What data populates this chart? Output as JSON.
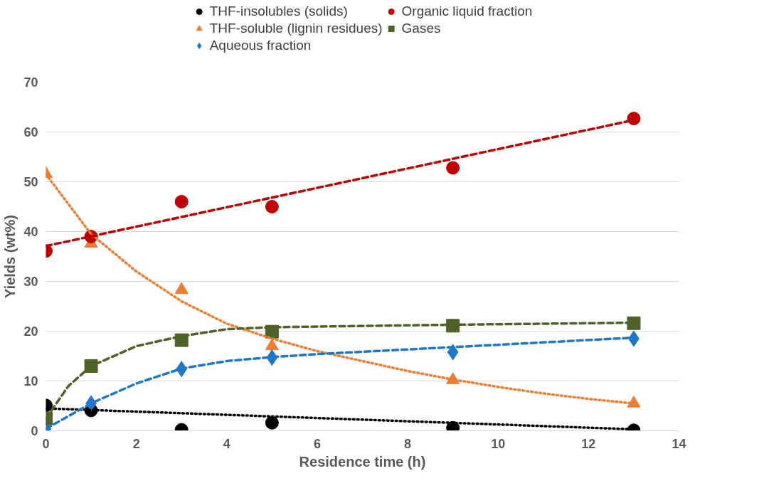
{
  "chart_data": {
    "type": "scatter",
    "xlabel": "Residence time (h)",
    "ylabel": "Yields (wt%)",
    "xlim": [
      0,
      14
    ],
    "ylim": [
      0,
      70
    ],
    "xticks": [
      0,
      2,
      4,
      6,
      8,
      10,
      12,
      14
    ],
    "yticks": [
      0,
      10,
      20,
      30,
      40,
      50,
      60,
      70
    ],
    "grid": "y",
    "legend": "top",
    "x": [
      0,
      1,
      3,
      5,
      9,
      13
    ],
    "series": [
      {
        "name": "THF-insolubles (solids)",
        "color": "#000000",
        "marker": "circle",
        "values": [
          5.1,
          4.1,
          0.2,
          1.6,
          0.6,
          0.1
        ]
      },
      {
        "name": "THF-soluble (lignin residues)",
        "color": "#ed7d31",
        "marker": "triangle",
        "values": [
          51.6,
          37.6,
          28.3,
          17.0,
          10.2,
          5.5
        ]
      },
      {
        "name": "Aqueous fraction",
        "color": "#1f77c8",
        "marker": "diamond",
        "values": [
          0.4,
          5.5,
          12.4,
          14.7,
          15.8,
          18.5
        ]
      },
      {
        "name": "Organic liquid fraction",
        "color": "#c00000",
        "marker": "circle",
        "values": [
          36.1,
          39.0,
          46.0,
          45.0,
          52.8,
          62.7
        ]
      },
      {
        "name": "Gases",
        "color": "#4f6228",
        "marker": "square",
        "values": [
          2.5,
          13.0,
          18.2,
          19.9,
          21.1,
          21.6
        ]
      },
      {
        "type": "line",
        "color": "#000000",
        "line_style": "dotted",
        "x": [
          0,
          13
        ],
        "values": [
          4.5,
          0.3
        ]
      },
      {
        "type": "line",
        "color": "#ed7d31",
        "line_style": "dotted",
        "x": [
          0,
          1,
          2,
          3,
          4,
          5,
          6,
          7,
          8,
          9,
          10,
          11,
          12,
          13
        ],
        "values": [
          51.5,
          39.5,
          32,
          26,
          21.5,
          18.5,
          16,
          14,
          12,
          10.3,
          8.8,
          7.5,
          6.4,
          5.5
        ]
      },
      {
        "type": "line",
        "color": "#1f77c8",
        "line_style": "dashed",
        "x": [
          0,
          1,
          2,
          3,
          4,
          5,
          6,
          9,
          13
        ],
        "values": [
          0.4,
          5.5,
          9.5,
          12.5,
          14,
          14.8,
          15.4,
          16.8,
          18.7
        ]
      },
      {
        "type": "line",
        "color": "#c00000",
        "line_style": "dashed",
        "x": [
          0,
          13
        ],
        "values": [
          37.1,
          62.4
        ]
      },
      {
        "type": "line",
        "color": "#4f6228",
        "line_style": "dashed",
        "x": [
          0,
          0.5,
          1,
          2,
          3,
          4,
          5,
          9,
          13
        ],
        "values": [
          2.5,
          9,
          13,
          17,
          19,
          20.4,
          20.8,
          21.3,
          21.7
        ]
      }
    ]
  }
}
